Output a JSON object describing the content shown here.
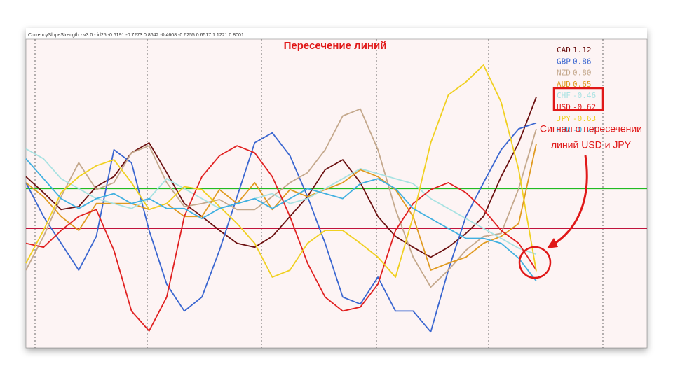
{
  "chart_data": {
    "type": "line",
    "header": "CurrencySlopeStrength - v3.0 - id25 -0.6191 -0.7273 0.8642 -0.4608 -0.6255 0.6517 1.1221 0.8001",
    "title": "Пересечение линий",
    "annotation": [
      "Сигнал о пересечении",
      "линий USD и JPY"
    ],
    "ylim": [
      -1.4,
      1.7
    ],
    "levels": [
      {
        "value": 0.2,
        "color": "#22bb22"
      },
      {
        "value": -0.2,
        "color": "#c0143c"
      }
    ],
    "series": [
      {
        "name": "CAD",
        "legend_label": "1.12",
        "color": "#6b1010",
        "values": [
          0.32,
          0.16,
          -0.01,
          0.02,
          0.22,
          0.32,
          0.56,
          0.66,
          0.36,
          0.05,
          -0.08,
          -0.22,
          -0.35,
          -0.39,
          -0.28,
          -0.08,
          0.12,
          0.39,
          0.49,
          0.26,
          -0.08,
          -0.28,
          -0.39,
          -0.49,
          -0.39,
          -0.25,
          -0.08,
          0.32,
          0.66,
          1.12
        ]
      },
      {
        "name": "GBP",
        "legend_label": "0.86",
        "color": "#3a66d0",
        "values": [
          0.26,
          -0.08,
          -0.35,
          -0.62,
          -0.28,
          0.59,
          0.46,
          -0.22,
          -0.76,
          -1.03,
          -0.89,
          -0.42,
          0.12,
          0.66,
          0.76,
          0.53,
          0.12,
          -0.35,
          -0.89,
          -0.96,
          -0.69,
          -1.03,
          -1.03,
          -1.24,
          -0.62,
          -0.08,
          0.26,
          0.59,
          0.8,
          0.86
        ]
      },
      {
        "name": "NZD",
        "legend_label": "0.80",
        "color": "#c4a88c",
        "values": [
          -0.62,
          -0.28,
          0.12,
          0.46,
          0.19,
          0.26,
          0.56,
          0.63,
          0.26,
          0.02,
          0.05,
          0.09,
          -0.01,
          -0.01,
          0.12,
          0.26,
          0.36,
          0.59,
          0.93,
          1.0,
          0.59,
          -0.01,
          -0.49,
          -0.79,
          -0.62,
          -0.42,
          -0.28,
          -0.25,
          0.2,
          0.8
        ]
      },
      {
        "name": "AUD",
        "legend_label": "0.65",
        "color": "#e09a20",
        "values": [
          0.26,
          0.12,
          -0.08,
          -0.22,
          0.05,
          0.05,
          0.05,
          -0.01,
          0.05,
          -0.08,
          -0.08,
          0.19,
          0.05,
          0.26,
          -0.01,
          0.19,
          0.12,
          0.19,
          0.26,
          0.39,
          0.32,
          0.19,
          -0.08,
          -0.62,
          -0.55,
          -0.49,
          -0.35,
          -0.28,
          -0.15,
          0.65
        ]
      },
      {
        "name": "CHF",
        "legend_label": "-0.46",
        "color": "#a8e2e2",
        "values": [
          0.6,
          0.5,
          0.3,
          0.2,
          0.1,
          0.05,
          0.0,
          0.1,
          0.3,
          0.2,
          0.1,
          0.0,
          0.05,
          0.1,
          0.15,
          0.05,
          0.1,
          0.2,
          0.3,
          0.4,
          0.35,
          0.3,
          0.25,
          0.1,
          0.0,
          -0.1,
          -0.2,
          -0.3,
          -0.4,
          -0.46
        ]
      },
      {
        "name": "USD",
        "legend_label": "-0.62",
        "color": "#e02020",
        "values": [
          -0.35,
          -0.39,
          -0.22,
          -0.08,
          -0.01,
          -0.42,
          -1.03,
          -1.23,
          -0.89,
          -0.08,
          0.32,
          0.53,
          0.63,
          0.56,
          0.32,
          -0.08,
          -0.55,
          -0.89,
          -1.03,
          -0.99,
          -0.76,
          -0.22,
          0.05,
          0.19,
          0.26,
          0.16,
          -0.01,
          -0.22,
          -0.35,
          -0.62
        ]
      },
      {
        "name": "JPY",
        "legend_label": "-0.63",
        "color": "#f0d020",
        "values": [
          -0.55,
          -0.22,
          0.16,
          0.32,
          0.43,
          0.49,
          0.26,
          -0.01,
          0.05,
          0.22,
          0.19,
          0.02,
          -0.15,
          -0.35,
          -0.69,
          -0.62,
          -0.35,
          -0.22,
          -0.22,
          -0.35,
          -0.49,
          -0.69,
          -0.08,
          0.66,
          1.14,
          1.27,
          1.44,
          1.07,
          0.39,
          -0.63
        ]
      },
      {
        "name": "EUR",
        "legend_label": "-0.73",
        "color": "#40b0e0",
        "values": [
          0.5,
          0.3,
          0.1,
          0.0,
          0.1,
          0.15,
          0.05,
          0.1,
          0.0,
          0.0,
          -0.1,
          0.0,
          0.05,
          0.1,
          0.0,
          0.1,
          0.2,
          0.15,
          0.1,
          0.25,
          0.3,
          0.2,
          0.0,
          -0.1,
          -0.2,
          -0.3,
          -0.3,
          -0.35,
          -0.5,
          -0.73
        ]
      }
    ]
  }
}
